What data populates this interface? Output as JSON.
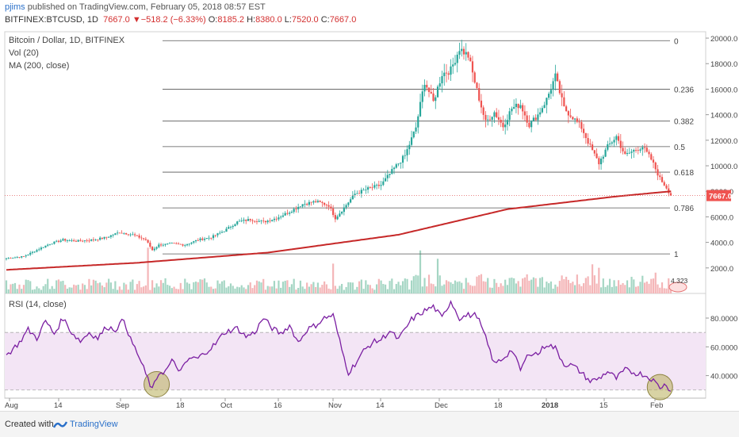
{
  "header": {
    "user": "pjims",
    "published": "published on TradingView.com, February 05, 2018 08:57 EST",
    "symbol": "BITFINEX:BTCUSD, 1D",
    "last": "7667.0",
    "change": "−518.2 (−6.33%)",
    "o_label": "O:",
    "o": "8185.2",
    "h_label": "H:",
    "h": "8380.0",
    "l_label": "L:",
    "l": "7520.0",
    "c_label": "C:",
    "c": "7667.0"
  },
  "legend": {
    "title": "Bitcoin / Dollar, 1D, BITFINEX",
    "vol": "Vol (20)",
    "ma": "MA (200, close)",
    "rsi": "RSI (14, close)"
  },
  "price_label": "7667.0",
  "vol_label": "4.323",
  "footer": {
    "created": "Created with",
    "brand": "TradingView"
  },
  "colors": {
    "up": "#26a69a",
    "down": "#ef5350",
    "ma": "#c62828",
    "rsi": "#7b1fa2",
    "rsi_band": "#f3e5f5",
    "circle": "#b8ae5a"
  },
  "chart_data": [
    {
      "type": "candlestick",
      "yaxis_ticks": [
        "20000.0",
        "18000.0",
        "16000.0",
        "14000.0",
        "12000.0",
        "10000.0",
        "8000.0",
        "6000.0",
        "4000.0",
        "2000.0"
      ],
      "ylim": [
        0,
        20500
      ],
      "fib_levels": [
        {
          "label": "0",
          "value": 19800
        },
        {
          "label": "0.236",
          "value": 16000
        },
        {
          "label": "0.382",
          "value": 13500
        },
        {
          "label": "0.5",
          "value": 11500
        },
        {
          "label": "0.618",
          "value": 9500
        },
        {
          "label": "0.786",
          "value": 6700
        },
        {
          "label": "1",
          "value": 3100
        }
      ],
      "x_ticks": [
        "Aug",
        "14",
        "Sep",
        "18",
        "Oct",
        "16",
        "Nov",
        "14",
        "Dec",
        "18",
        "2018",
        "15",
        "Feb"
      ],
      "price_anchors": [
        [
          0,
          2750
        ],
        [
          8,
          2900
        ],
        [
          14,
          3400
        ],
        [
          20,
          3900
        ],
        [
          26,
          4200
        ],
        [
          32,
          4100
        ],
        [
          40,
          4200
        ],
        [
          46,
          4400
        ],
        [
          52,
          4800
        ],
        [
          58,
          4600
        ],
        [
          64,
          4200
        ],
        [
          67,
          3400
        ],
        [
          70,
          3800
        ],
        [
          76,
          3900
        ],
        [
          82,
          3800
        ],
        [
          88,
          4200
        ],
        [
          94,
          4400
        ],
        [
          100,
          4900
        ],
        [
          106,
          5600
        ],
        [
          112,
          5800
        ],
        [
          118,
          5600
        ],
        [
          124,
          5900
        ],
        [
          130,
          6400
        ],
        [
          136,
          7000
        ],
        [
          142,
          7200
        ],
        [
          148,
          6900
        ],
        [
          151,
          5900
        ],
        [
          154,
          6500
        ],
        [
          160,
          7800
        ],
        [
          166,
          8200
        ],
        [
          172,
          8500
        ],
        [
          178,
          9800
        ],
        [
          183,
          10800
        ],
        [
          188,
          13000
        ],
        [
          192,
          16600
        ],
        [
          196,
          15000
        ],
        [
          200,
          17200
        ],
        [
          204,
          17500
        ],
        [
          208,
          19200
        ],
        [
          212,
          18600
        ],
        [
          216,
          15900
        ],
        [
          220,
          13400
        ],
        [
          224,
          14200
        ],
        [
          228,
          13100
        ],
        [
          232,
          14500
        ],
        [
          236,
          14800
        ],
        [
          240,
          13200
        ],
        [
          244,
          14000
        ],
        [
          248,
          15200
        ],
        [
          252,
          17000
        ],
        [
          256,
          14500
        ],
        [
          260,
          13800
        ],
        [
          264,
          13000
        ],
        [
          268,
          11500
        ],
        [
          272,
          10200
        ],
        [
          276,
          11500
        ],
        [
          280,
          12300
        ],
        [
          284,
          10800
        ],
        [
          288,
          11200
        ],
        [
          292,
          11500
        ],
        [
          296,
          10500
        ],
        [
          300,
          9000
        ],
        [
          303,
          8300
        ],
        [
          305,
          7667
        ]
      ],
      "ma200_anchors": [
        [
          0,
          1850
        ],
        [
          60,
          2400
        ],
        [
          120,
          3200
        ],
        [
          180,
          4600
        ],
        [
          230,
          6600
        ],
        [
          280,
          7600
        ],
        [
          305,
          8000
        ]
      ],
      "volume_ylim": [
        0,
        12000
      ],
      "volume_highlights": [
        [
          65,
          6600
        ],
        [
          150,
          4300
        ],
        [
          190,
          6200
        ],
        [
          198,
          5000
        ],
        [
          269,
          4200
        ],
        [
          272,
          3700
        ],
        [
          298,
          3000
        ]
      ]
    },
    {
      "type": "line",
      "name": "RSI (14, close)",
      "yaxis_ticks": [
        "80.0000",
        "60.0000",
        "40.0000"
      ],
      "ylim": [
        26,
        96
      ],
      "band": [
        30,
        70
      ],
      "anchors": [
        [
          0,
          54
        ],
        [
          6,
          63
        ],
        [
          10,
          72
        ],
        [
          14,
          66
        ],
        [
          18,
          78
        ],
        [
          22,
          69
        ],
        [
          26,
          80
        ],
        [
          30,
          70
        ],
        [
          34,
          64
        ],
        [
          38,
          70
        ],
        [
          42,
          66
        ],
        [
          46,
          74
        ],
        [
          50,
          72
        ],
        [
          54,
          79
        ],
        [
          57,
          65
        ],
        [
          60,
          56
        ],
        [
          63,
          45
        ],
        [
          67,
          30
        ],
        [
          70,
          42
        ],
        [
          73,
          43
        ],
        [
          76,
          50
        ],
        [
          80,
          43
        ],
        [
          84,
          52
        ],
        [
          88,
          52
        ],
        [
          92,
          57
        ],
        [
          96,
          62
        ],
        [
          100,
          70
        ],
        [
          106,
          73
        ],
        [
          110,
          67
        ],
        [
          114,
          70
        ],
        [
          118,
          80
        ],
        [
          122,
          73
        ],
        [
          126,
          69
        ],
        [
          130,
          75
        ],
        [
          134,
          63
        ],
        [
          138,
          72
        ],
        [
          142,
          75
        ],
        [
          146,
          80
        ],
        [
          150,
          82
        ],
        [
          154,
          58
        ],
        [
          157,
          42
        ],
        [
          160,
          48
        ],
        [
          164,
          57
        ],
        [
          168,
          63
        ],
        [
          172,
          65
        ],
        [
          176,
          71
        ],
        [
          180,
          65
        ],
        [
          186,
          79
        ],
        [
          192,
          85
        ],
        [
          196,
          88
        ],
        [
          200,
          80
        ],
        [
          204,
          92
        ],
        [
          208,
          80
        ],
        [
          212,
          82
        ],
        [
          216,
          82
        ],
        [
          220,
          66
        ],
        [
          224,
          48
        ],
        [
          228,
          52
        ],
        [
          232,
          58
        ],
        [
          236,
          44
        ],
        [
          240,
          56
        ],
        [
          244,
          55
        ],
        [
          248,
          62
        ],
        [
          252,
          59
        ],
        [
          256,
          48
        ],
        [
          260,
          47
        ],
        [
          264,
          42
        ],
        [
          268,
          36
        ],
        [
          272,
          38
        ],
        [
          276,
          43
        ],
        [
          280,
          38
        ],
        [
          284,
          44
        ],
        [
          288,
          42
        ],
        [
          292,
          41
        ],
        [
          296,
          38
        ],
        [
          300,
          32
        ],
        [
          303,
          34
        ],
        [
          305,
          29
        ]
      ],
      "circles": [
        [
          69,
          34
        ],
        [
          300,
          32
        ]
      ]
    }
  ]
}
